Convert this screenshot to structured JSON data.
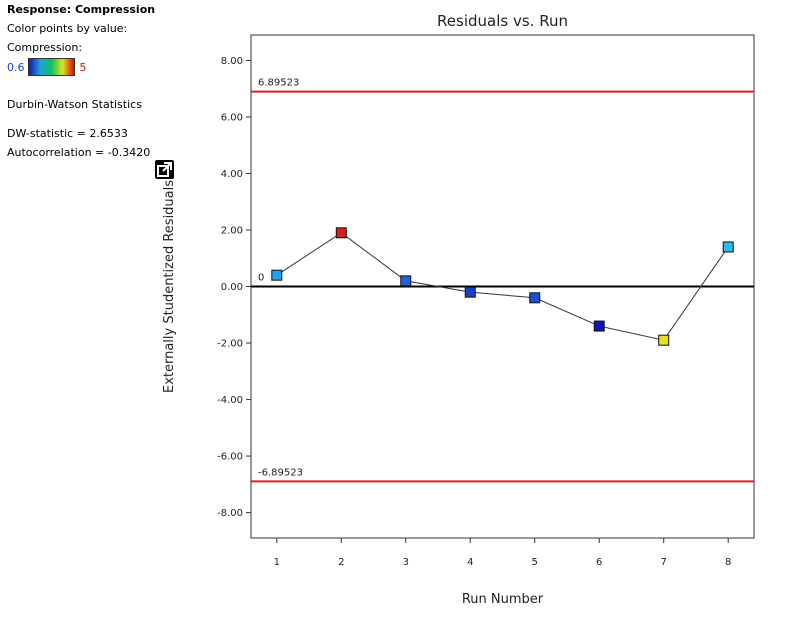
{
  "sidebar": {
    "response": "Response: Compression",
    "color_by": "Color points by value:",
    "variable": "Compression:",
    "scale_min": "0.6",
    "scale_max": "5",
    "dw_title": "Durbin-Watson Statistics",
    "dw_statistic": "DW-statistic = 2.6533",
    "autocorrelation": "Autocorrelation = -0.3420"
  },
  "icons": {
    "popout": "popout-icon"
  },
  "chart_data": {
    "type": "scatter",
    "title": "Residuals vs. Run",
    "xlabel": "Run Number",
    "ylabel": "Externally Studentized Residuals",
    "x": [
      1,
      2,
      3,
      4,
      5,
      6,
      7,
      8
    ],
    "y": [
      0.4,
      1.9,
      0.2,
      -0.2,
      -0.4,
      -1.4,
      -1.9,
      1.4
    ],
    "point_colors": [
      "#2a9df4",
      "#d81e1e",
      "#1e64d8",
      "#1e3cc8",
      "#1e50d0",
      "#1414b4",
      "#e8e020",
      "#30b8f0"
    ],
    "connect_points": true,
    "xlim": [
      0.6,
      8.4
    ],
    "ylim": [
      -8.9,
      8.9
    ],
    "xticks": [
      "1",
      "2",
      "3",
      "4",
      "5",
      "6",
      "7",
      "8"
    ],
    "yticks": [
      8,
      6,
      4,
      2,
      0,
      -2,
      -4,
      -6,
      -8
    ],
    "ytick_labels": [
      "8.00",
      "6.00",
      "4.00",
      "2.00",
      "0.00",
      "-2.00",
      "-4.00",
      "-6.00",
      "-8.00"
    ],
    "limits": [
      {
        "value": 6.89523,
        "label": "6.89523",
        "color": "#e31a1c"
      },
      {
        "value": -6.89523,
        "label": "-6.89523",
        "color": "#e31a1c"
      }
    ],
    "zero_line": {
      "value": 0,
      "label": "0",
      "color": "#000000"
    },
    "grid": false
  }
}
